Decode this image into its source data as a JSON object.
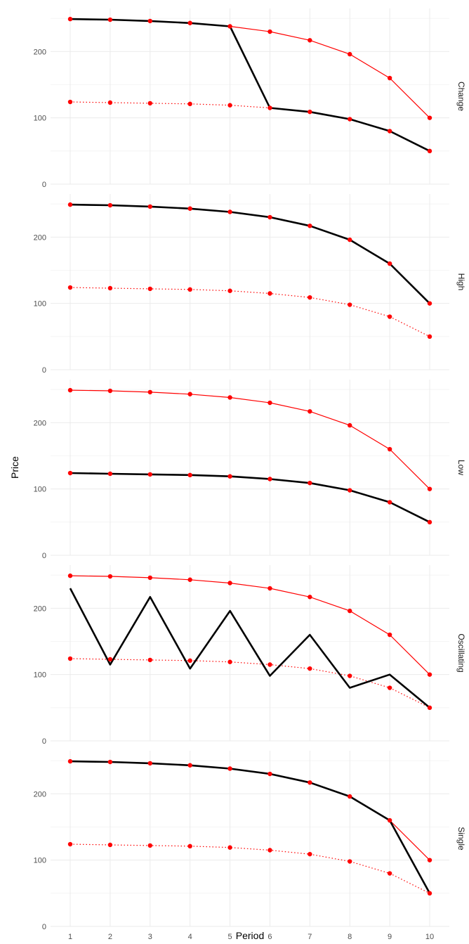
{
  "chart_data": {
    "type": "line",
    "xlabel": "Period",
    "ylabel": "Price",
    "x": [
      1,
      2,
      3,
      4,
      5,
      6,
      7,
      8,
      9,
      10
    ],
    "ylim": [
      0,
      265
    ],
    "y_ticks": [
      0,
      100,
      200
    ],
    "grid": true,
    "colors": {
      "upper": "#ff0000",
      "lower": "#ff0000",
      "price": "#000000"
    },
    "panels": [
      {
        "label": "Change",
        "series": [
          {
            "style": "upper",
            "values": [
              249,
              248,
              246,
              243,
              238,
              230,
              217,
              196,
              160,
              100
            ]
          },
          {
            "style": "lower",
            "values": [
              124,
              123,
              122,
              121,
              119,
              115,
              109,
              98,
              80,
              50
            ]
          },
          {
            "style": "price",
            "values": [
              249,
              248,
              246,
              243,
              238,
              115,
              109,
              98,
              80,
              50
            ]
          }
        ]
      },
      {
        "label": "High",
        "series": [
          {
            "style": "upper",
            "values": [
              249,
              248,
              246,
              243,
              238,
              230,
              217,
              196,
              160,
              100
            ]
          },
          {
            "style": "lower",
            "values": [
              124,
              123,
              122,
              121,
              119,
              115,
              109,
              98,
              80,
              50
            ]
          },
          {
            "style": "price",
            "values": [
              249,
              248,
              246,
              243,
              238,
              230,
              217,
              196,
              160,
              100
            ]
          }
        ]
      },
      {
        "label": "Low",
        "series": [
          {
            "style": "upper",
            "values": [
              249,
              248,
              246,
              243,
              238,
              230,
              217,
              196,
              160,
              100
            ]
          },
          {
            "style": "lower",
            "values": [
              124,
              123,
              122,
              121,
              119,
              115,
              109,
              98,
              80,
              50
            ]
          },
          {
            "style": "price",
            "values": [
              124,
              123,
              122,
              121,
              119,
              115,
              109,
              98,
              80,
              50
            ]
          }
        ]
      },
      {
        "label": "Oscillating",
        "series": [
          {
            "style": "upper",
            "values": [
              249,
              248,
              246,
              243,
              238,
              230,
              217,
              196,
              160,
              100
            ]
          },
          {
            "style": "lower",
            "values": [
              124,
              123,
              122,
              121,
              119,
              115,
              109,
              98,
              80,
              50
            ]
          },
          {
            "style": "price",
            "values": [
              230,
              115,
              217,
              109,
              196,
              98,
              160,
              80,
              100,
              50
            ]
          }
        ]
      },
      {
        "label": "Single",
        "series": [
          {
            "style": "upper",
            "values": [
              249,
              248,
              246,
              243,
              238,
              230,
              217,
              196,
              160,
              100
            ]
          },
          {
            "style": "lower",
            "values": [
              124,
              123,
              122,
              121,
              119,
              115,
              109,
              98,
              80,
              50
            ]
          },
          {
            "style": "price",
            "values": [
              249,
              248,
              246,
              243,
              238,
              230,
              217,
              196,
              160,
              50
            ]
          }
        ]
      }
    ]
  }
}
